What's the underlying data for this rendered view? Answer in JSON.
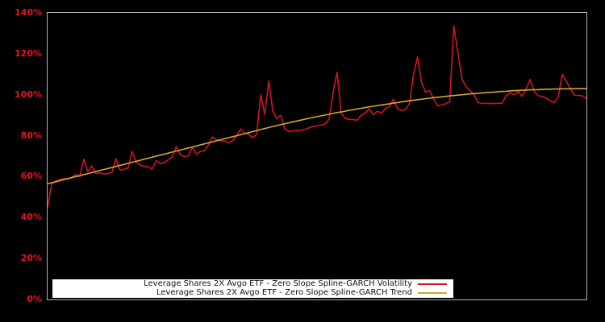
{
  "colors": {
    "background": "#000000",
    "plot_border": "#b3b3b3",
    "axis_tick_label": "#e81123",
    "volatility_line": "#d01425",
    "trend_line": "#d1a826",
    "legend_background": "#ffffff",
    "legend_text": "#111111"
  },
  "chart_data": {
    "type": "line",
    "title": "",
    "xlabel": "",
    "ylabel": "",
    "ylim": [
      0,
      140
    ],
    "y_unit": "%",
    "y_tick_labels": [
      "0%",
      "20%",
      "40%",
      "60%",
      "80%",
      "100%",
      "120%",
      "140%"
    ],
    "x_tick_labels": [],
    "grid": false,
    "legend_position": "bottom-center-inside",
    "series": [
      {
        "name": "Leverage Shares 2X Avgo ETF - Zero Slope Spline-GARCH Volatility",
        "color": "#d01425",
        "values": [
          45.0,
          56.5,
          57.8,
          58.6,
          59.0,
          59.2,
          59.6,
          61.0,
          60.0,
          68.5,
          62.5,
          65.3,
          61.6,
          61.8,
          61.4,
          61.5,
          62.2,
          68.8,
          63.2,
          63.6,
          64.2,
          72.3,
          67.2,
          65.7,
          65.0,
          64.9,
          63.7,
          67.7,
          66.3,
          66.9,
          68.2,
          69.6,
          74.7,
          70.8,
          69.8,
          70.2,
          74.4,
          71.0,
          72.3,
          72.7,
          75.5,
          79.4,
          78.0,
          77.6,
          77.4,
          76.5,
          77.5,
          80.0,
          83.3,
          81.3,
          80.6,
          79.0,
          80.6,
          100.1,
          90.3,
          106.8,
          91.9,
          88.4,
          89.9,
          83.3,
          82.1,
          82.3,
          82.5,
          82.6,
          83.1,
          83.9,
          84.5,
          84.8,
          85.1,
          85.9,
          88.0,
          101.0,
          111.0,
          91.1,
          88.4,
          88.0,
          87.8,
          87.6,
          90.1,
          91.1,
          93.1,
          90.3,
          91.9,
          91.1,
          93.1,
          94.3,
          97.8,
          93.1,
          92.3,
          92.9,
          95.8,
          109.9,
          118.5,
          106.0,
          101.2,
          102.1,
          98.0,
          94.6,
          95.0,
          95.6,
          96.6,
          133.7,
          121.0,
          108.0,
          104.0,
          102.1,
          100.1,
          96.2,
          95.8,
          95.8,
          95.7,
          95.7,
          95.8,
          95.9,
          99.5,
          100.9,
          100.0,
          101.7,
          99.3,
          103.0,
          107.5,
          101.7,
          99.5,
          99.2,
          98.4,
          97.0,
          96.2,
          99.0,
          110.0,
          106.5,
          103.0,
          99.7,
          99.7,
          99.5,
          98.2
        ]
      },
      {
        "name": "Leverage Shares 2X Avgo ETF - Zero Slope Spline-GARCH Trend",
        "color": "#d1a826",
        "values": [
          56.5,
          57.0,
          57.5,
          58.0,
          58.5,
          59.0,
          59.5,
          60.0,
          60.5,
          61.0,
          61.5,
          62.0,
          62.5,
          63.0,
          63.5,
          64.0,
          64.5,
          65.0,
          65.5,
          66.0,
          66.5,
          67.0,
          67.5,
          68.0,
          68.5,
          69.0,
          69.5,
          70.0,
          70.5,
          71.0,
          71.5,
          72.0,
          72.5,
          73.0,
          73.5,
          74.0,
          74.5,
          75.0,
          75.5,
          76.0,
          76.5,
          77.0,
          77.5,
          78.0,
          78.5,
          79.0,
          79.5,
          80.0,
          80.5,
          81.0,
          81.5,
          82.0,
          82.5,
          83.0,
          83.5,
          84.0,
          84.5,
          84.9,
          85.4,
          85.9,
          86.3,
          86.8,
          87.2,
          87.6,
          88.1,
          88.5,
          88.9,
          89.3,
          89.7,
          90.1,
          90.5,
          90.9,
          91.3,
          91.6,
          92.0,
          92.4,
          92.7,
          93.1,
          93.4,
          93.7,
          94.1,
          94.4,
          94.7,
          95.0,
          95.3,
          95.6,
          95.9,
          96.2,
          96.5,
          96.8,
          97.1,
          97.3,
          97.6,
          97.8,
          98.1,
          98.3,
          98.6,
          98.8,
          99.0,
          99.2,
          99.4,
          99.6,
          99.8,
          100.0,
          100.2,
          100.4,
          100.6,
          100.7,
          100.9,
          101.1,
          101.2,
          101.3,
          101.5,
          101.6,
          101.7,
          101.9,
          102.0,
          102.1,
          102.2,
          102.3,
          102.4,
          102.5,
          102.5,
          102.6,
          102.7,
          102.7,
          102.8,
          102.8,
          102.9,
          102.9,
          102.9,
          103.0,
          103.0,
          103.0,
          103.0
        ]
      }
    ]
  }
}
